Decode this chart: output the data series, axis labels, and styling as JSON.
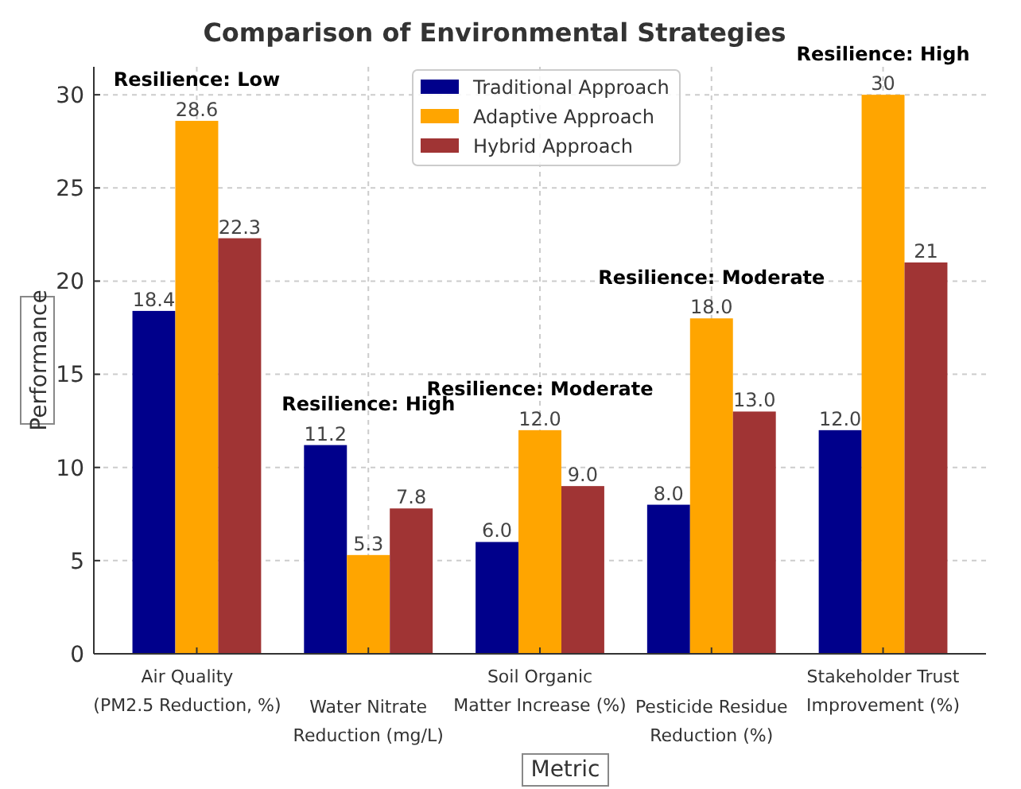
{
  "chart_data": {
    "type": "bar",
    "title": "Comparison of Environmental Strategies",
    "xlabel": "Metric",
    "ylabel": "Performance",
    "categories": [
      "Air Quality\n(PM2.5 Reduction, %)",
      "Water Nitrate\nReduction (mg/L)",
      "Soil Organic\nMatter Increase (%)",
      "Pesticide Residue\nReduction (%)",
      "Stakeholder Trust\nImprovement (%)"
    ],
    "series": [
      {
        "name": "Traditional Approach",
        "color": "#00008b",
        "values": [
          18.4,
          11.2,
          6.0,
          8.0,
          12.0
        ],
        "value_labels": [
          "18.4",
          "11.2",
          "6.0",
          "8.0",
          "12.0"
        ]
      },
      {
        "name": "Adaptive Approach",
        "color": "#ffa500",
        "values": [
          28.6,
          5.3,
          12.0,
          18.0,
          30
        ],
        "value_labels": [
          "28.6",
          "5.3",
          "12.0",
          "18.0",
          "30"
        ]
      },
      {
        "name": "Hybrid Approach",
        "color": "#a03434",
        "values": [
          22.3,
          7.8,
          9.0,
          13.0,
          21
        ],
        "value_labels": [
          "22.3",
          "7.8",
          "9.0",
          "13.0",
          "21"
        ]
      }
    ],
    "annotations": [
      "Resilience: Low",
      "Resilience: High",
      "Resilience: Moderate",
      "Resilience: Moderate",
      "Resilience: High"
    ],
    "ylim": [
      0,
      31.5
    ],
    "yticks": [
      0,
      5,
      10,
      15,
      20,
      25,
      30
    ],
    "grid": true,
    "legend": "top"
  }
}
